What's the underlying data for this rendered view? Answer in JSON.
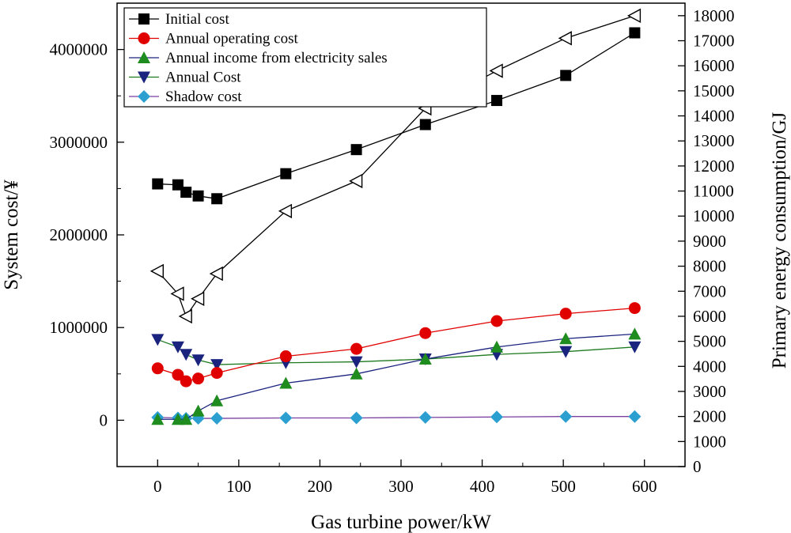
{
  "chart_data": {
    "type": "line",
    "xlabel": "Gas turbine power/kW",
    "ylabel_left": "System cost/¥",
    "ylabel_right": "Primary energy consumption/GJ",
    "xlim": [
      -50,
      650
    ],
    "ylim_left": [
      -500000,
      4500000
    ],
    "ylim_right": [
      0,
      18500
    ],
    "x_ticks": [
      0,
      100,
      200,
      300,
      400,
      500,
      600
    ],
    "y_left_ticks": [
      0,
      1000000,
      2000000,
      3000000,
      4000000
    ],
    "y_right_ticks": [
      0,
      1000,
      2000,
      3000,
      4000,
      5000,
      6000,
      7000,
      8000,
      9000,
      10000,
      11000,
      12000,
      13000,
      14000,
      15000,
      16000,
      17000,
      18000
    ],
    "grid": false,
    "legend_position": "top-left",
    "x": [
      0,
      25,
      35,
      50,
      73,
      158,
      245,
      330,
      418,
      503,
      588
    ],
    "series": [
      {
        "name": "Initial cost",
        "axis": "left",
        "marker": "square",
        "color": "#000000",
        "marker_color": "#000000",
        "values": [
          2550000,
          2540000,
          2460000,
          2420000,
          2390000,
          2660000,
          2920000,
          3190000,
          3450000,
          3720000,
          4180000
        ]
      },
      {
        "name": "Annual operating cost",
        "axis": "left",
        "marker": "circle",
        "color": "#e00000",
        "marker_color": "#e00000",
        "values": [
          560000,
          490000,
          420000,
          450000,
          510000,
          690000,
          770000,
          940000,
          1070000,
          1150000,
          1210000
        ]
      },
      {
        "name": "Annual income from electricity sales",
        "axis": "left",
        "marker": "triangle-up",
        "color": "#1a237e",
        "marker_color": "#1e8c1e",
        "values": [
          10000,
          10000,
          10000,
          100000,
          210000,
          400000,
          500000,
          660000,
          790000,
          880000,
          930000
        ]
      },
      {
        "name": "Annual Cost",
        "axis": "left",
        "marker": "triangle-down",
        "color": "#1e7a1e",
        "marker_color": "#1a237e",
        "values": [
          870000,
          790000,
          710000,
          650000,
          600000,
          620000,
          630000,
          660000,
          710000,
          740000,
          790000
        ]
      },
      {
        "name": "Shadow cost",
        "axis": "left",
        "marker": "diamond",
        "color": "#7b3fa0",
        "marker_color": "#2a9fd0",
        "values": [
          30000,
          25000,
          20000,
          20000,
          20000,
          25000,
          25000,
          30000,
          35000,
          40000,
          40000
        ]
      },
      {
        "name": "",
        "axis": "right",
        "marker": "triangle-left-open",
        "color": "#000000",
        "marker_color": "#000000",
        "values": [
          7800,
          6900,
          6000,
          6700,
          7700,
          10200,
          11400,
          14300,
          15800,
          17100,
          18000
        ]
      }
    ]
  }
}
